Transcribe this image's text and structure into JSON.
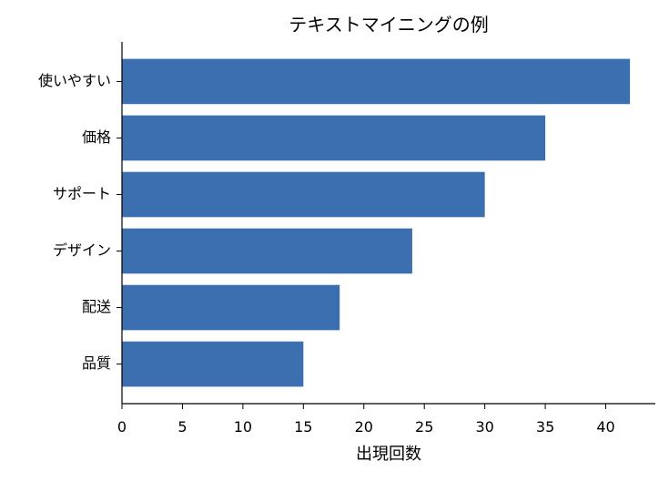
{
  "chart_data": {
    "type": "bar",
    "orientation": "horizontal",
    "title": "テキストマイニングの例",
    "xlabel": "出現回数",
    "ylabel": "",
    "categories": [
      "使いやすい",
      "価格",
      "サポート",
      "デザイン",
      "配送",
      "品質"
    ],
    "values": [
      42,
      35,
      30,
      24,
      18,
      15
    ],
    "xlim": [
      0,
      44.1
    ],
    "xticks": [
      0,
      5,
      10,
      15,
      20,
      25,
      30,
      35,
      40
    ],
    "bar_color": "#3b6fb0",
    "grid": false,
    "legend": "none"
  }
}
